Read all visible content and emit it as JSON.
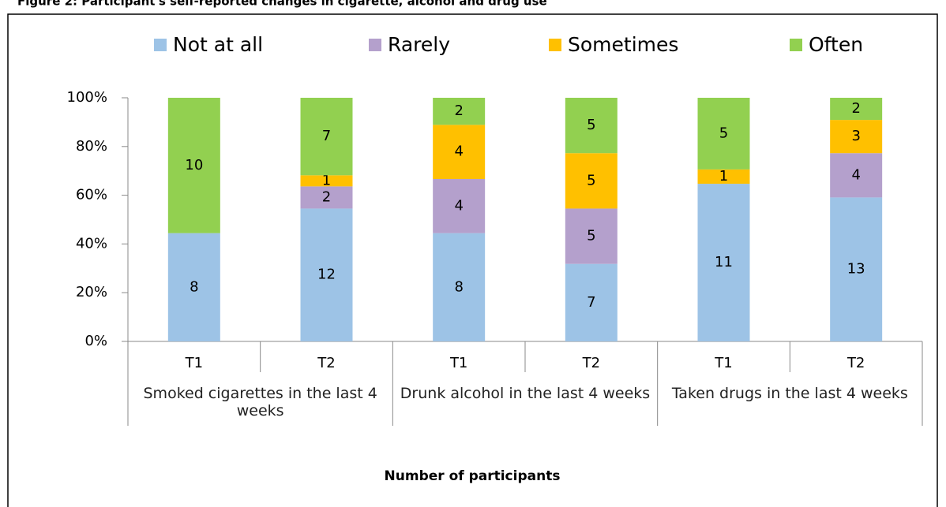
{
  "chart_data": {
    "type": "bar",
    "stack": "percent",
    "title": "Figure 2: Participant's self-reported changes in cigarette, alcohol and drug use",
    "categories": [
      "T1",
      "T2",
      "T1",
      "T2",
      "T1",
      "T2"
    ],
    "groups": [
      "Smoked cigarettes in the last 4 weeks",
      "Drunk alcohol in the last 4 weeks",
      "Taken drugs in the last 4 weeks"
    ],
    "xlabel": "Number of participants",
    "series": [
      {
        "name": "Not at all",
        "color": "#9dc3e6",
        "values": [
          8,
          12,
          8,
          7,
          11,
          13
        ]
      },
      {
        "name": "Rarely",
        "color": "#b4a0cc",
        "values": [
          0,
          2,
          4,
          5,
          0,
          4
        ]
      },
      {
        "name": "Sometimes",
        "color": "#ffc000",
        "values": [
          0,
          1,
          4,
          5,
          1,
          3
        ]
      },
      {
        "name": "Often",
        "color": "#92d050",
        "values": [
          10,
          7,
          2,
          5,
          5,
          2
        ]
      }
    ],
    "ylim": [
      0,
      100
    ],
    "yticks": [
      {
        "value": 0,
        "label": "0%"
      },
      {
        "value": 20,
        "label": "20%"
      },
      {
        "value": 40,
        "label": "40%"
      },
      {
        "value": 60,
        "label": "60%"
      },
      {
        "value": 80,
        "label": "80%"
      },
      {
        "value": 100,
        "label": "100%"
      }
    ],
    "legend": "top"
  }
}
